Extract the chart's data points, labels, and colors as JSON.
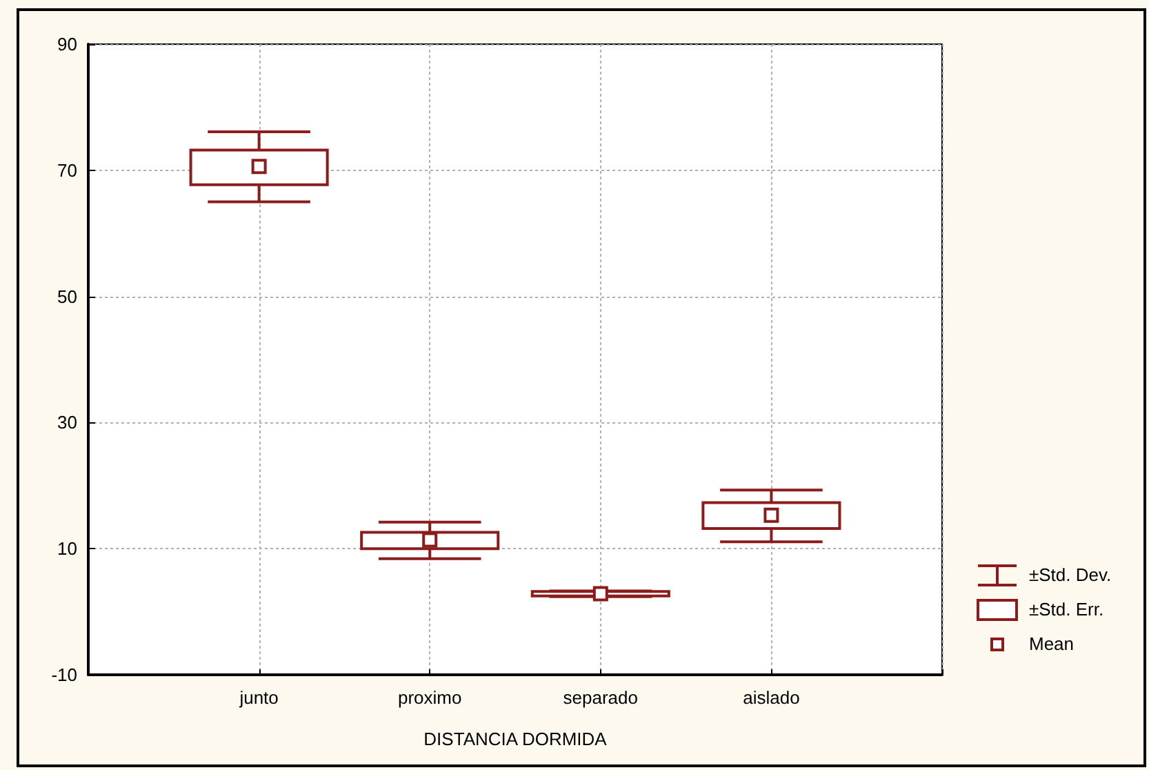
{
  "chart_data": {
    "type": "box",
    "xlabel": "DISTANCIA DORMIDA",
    "categories": [
      "junto",
      "proximo",
      "separado",
      "aislado"
    ],
    "boxes": [
      {
        "low": 65.0,
        "q1": 67.7,
        "mean": 70.6,
        "q3": 73.2,
        "high": 76.1
      },
      {
        "low": 8.4,
        "q1": 10.0,
        "mean": 11.4,
        "q3": 12.6,
        "high": 14.2
      },
      {
        "low": 2.4,
        "q1": 2.5,
        "mean": 2.85,
        "q3": 3.2,
        "high": 3.3
      },
      {
        "low": 11.1,
        "q1": 13.2,
        "mean": 15.3,
        "q3": 17.3,
        "high": 19.3
      }
    ],
    "color": "#8c1c1c",
    "annotations": [
      "±Std. Dev.",
      "±Std. Err.",
      "Mean"
    ],
    "ylim": [
      -10,
      90
    ],
    "yticks": [
      -10,
      10,
      30,
      50,
      70,
      90
    ],
    "grid": true,
    "marker": "square"
  }
}
